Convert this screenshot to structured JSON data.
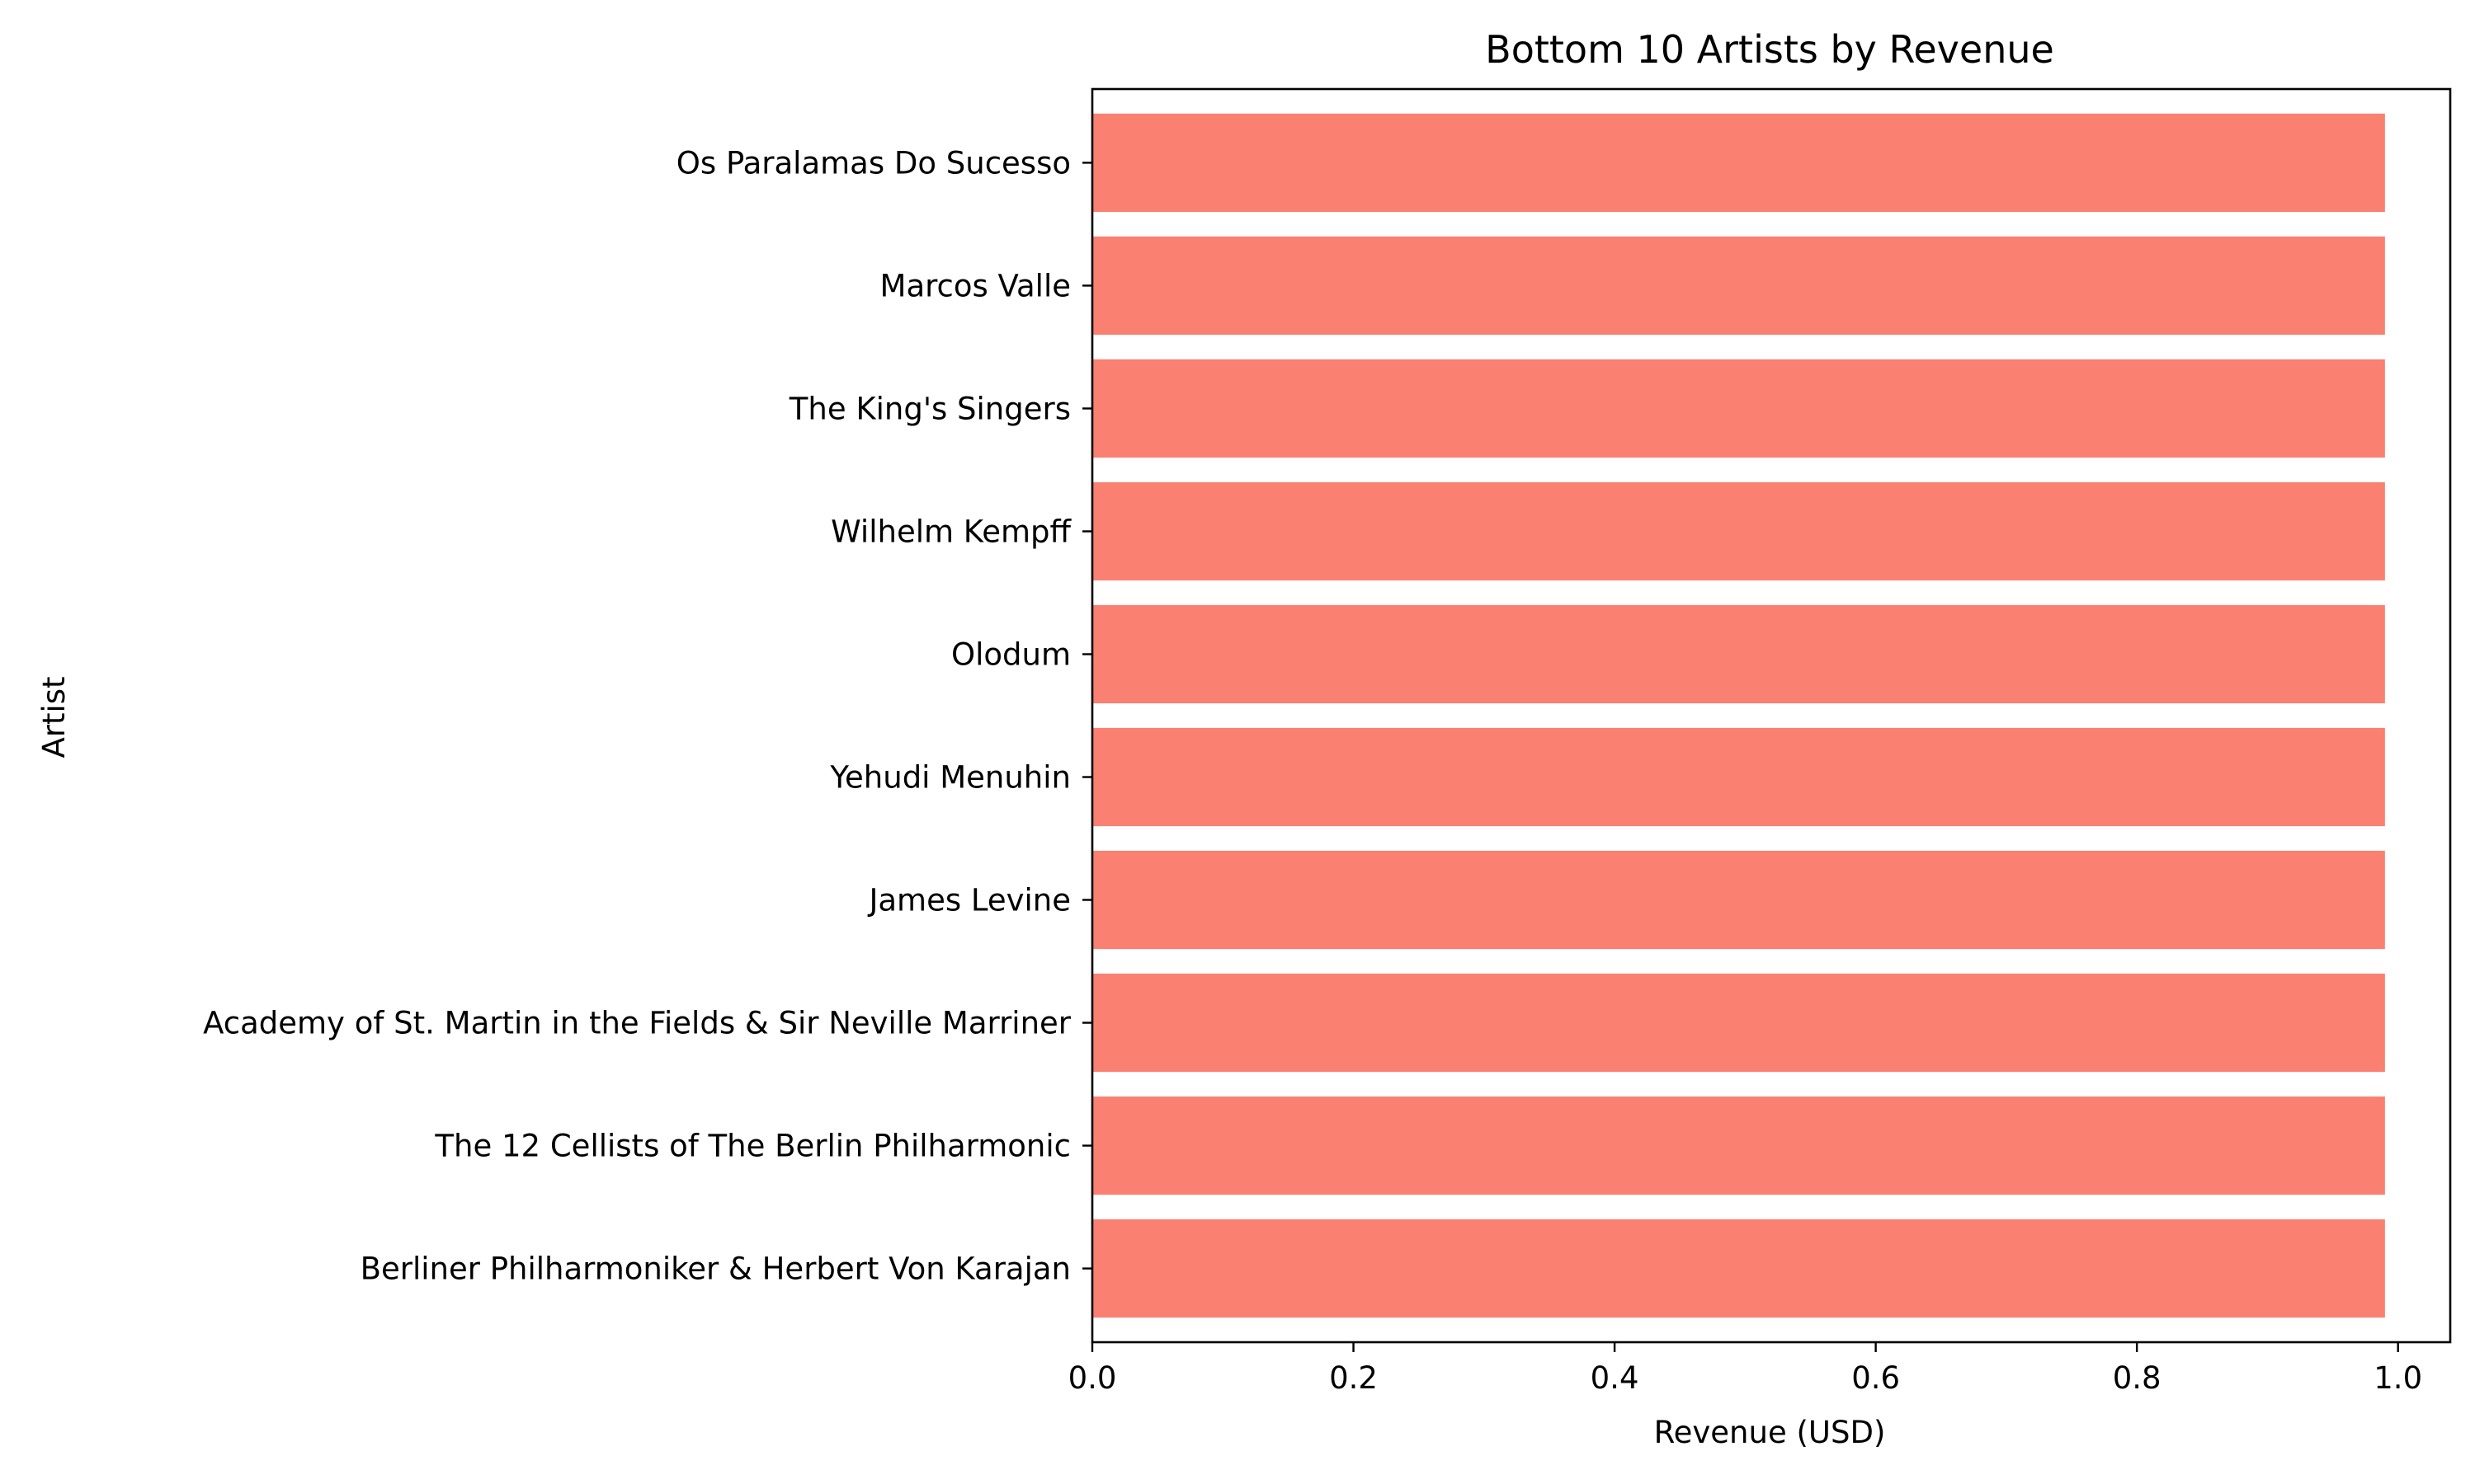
{
  "chart_data": {
    "type": "bar",
    "orientation": "horizontal",
    "title": "Bottom 10 Artists by Revenue",
    "xlabel": "Revenue (USD)",
    "ylabel": "Artist",
    "xlim": [
      0,
      1.04
    ],
    "xticks": [
      "0.0",
      "0.2",
      "0.4",
      "0.6",
      "0.8",
      "1.0"
    ],
    "grid": false,
    "bar_color": "#fa8072",
    "categories": [
      "Os Paralamas Do Sucesso",
      "Marcos Valle",
      "The King's Singers",
      "Wilhelm Kempff",
      "Olodum",
      "Yehudi Menuhin",
      "James Levine",
      "Academy of St. Martin in the Fields & Sir Neville Marriner",
      "The 12 Cellists of The Berlin Philharmonic",
      "Berliner Philharmoniker & Herbert Von Karajan"
    ],
    "values": [
      0.99,
      0.99,
      0.99,
      0.99,
      0.99,
      0.99,
      0.99,
      0.99,
      0.99,
      0.99
    ]
  }
}
